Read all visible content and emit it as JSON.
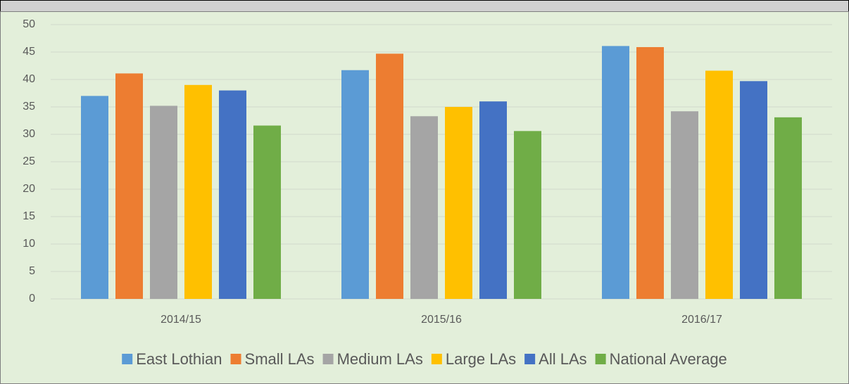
{
  "chart_data": {
    "type": "bar",
    "categories": [
      "2014/15",
      "2015/16",
      "2016/17"
    ],
    "series": [
      {
        "name": "East Lothian",
        "color": "#5b9bd5",
        "values": [
          37,
          41.7,
          46.1
        ]
      },
      {
        "name": "Small LAs",
        "color": "#ed7d31",
        "values": [
          41.1,
          44.7,
          45.9
        ]
      },
      {
        "name": "Medium LAs",
        "color": "#a5a5a5",
        "values": [
          35.2,
          33.3,
          34.2
        ]
      },
      {
        "name": "Large LAs",
        "color": "#ffc000",
        "values": [
          39,
          35,
          41.6
        ]
      },
      {
        "name": "All LAs",
        "color": "#4472c4",
        "values": [
          38,
          36,
          39.7
        ]
      },
      {
        "name": "National Average",
        "color": "#70ad47",
        "values": [
          31.6,
          30.6,
          33.1
        ]
      }
    ],
    "ylim": [
      0,
      50
    ],
    "yticks": [
      0,
      5,
      10,
      15,
      20,
      25,
      30,
      35,
      40,
      45,
      50
    ],
    "grid": true,
    "legend": "bottom"
  }
}
